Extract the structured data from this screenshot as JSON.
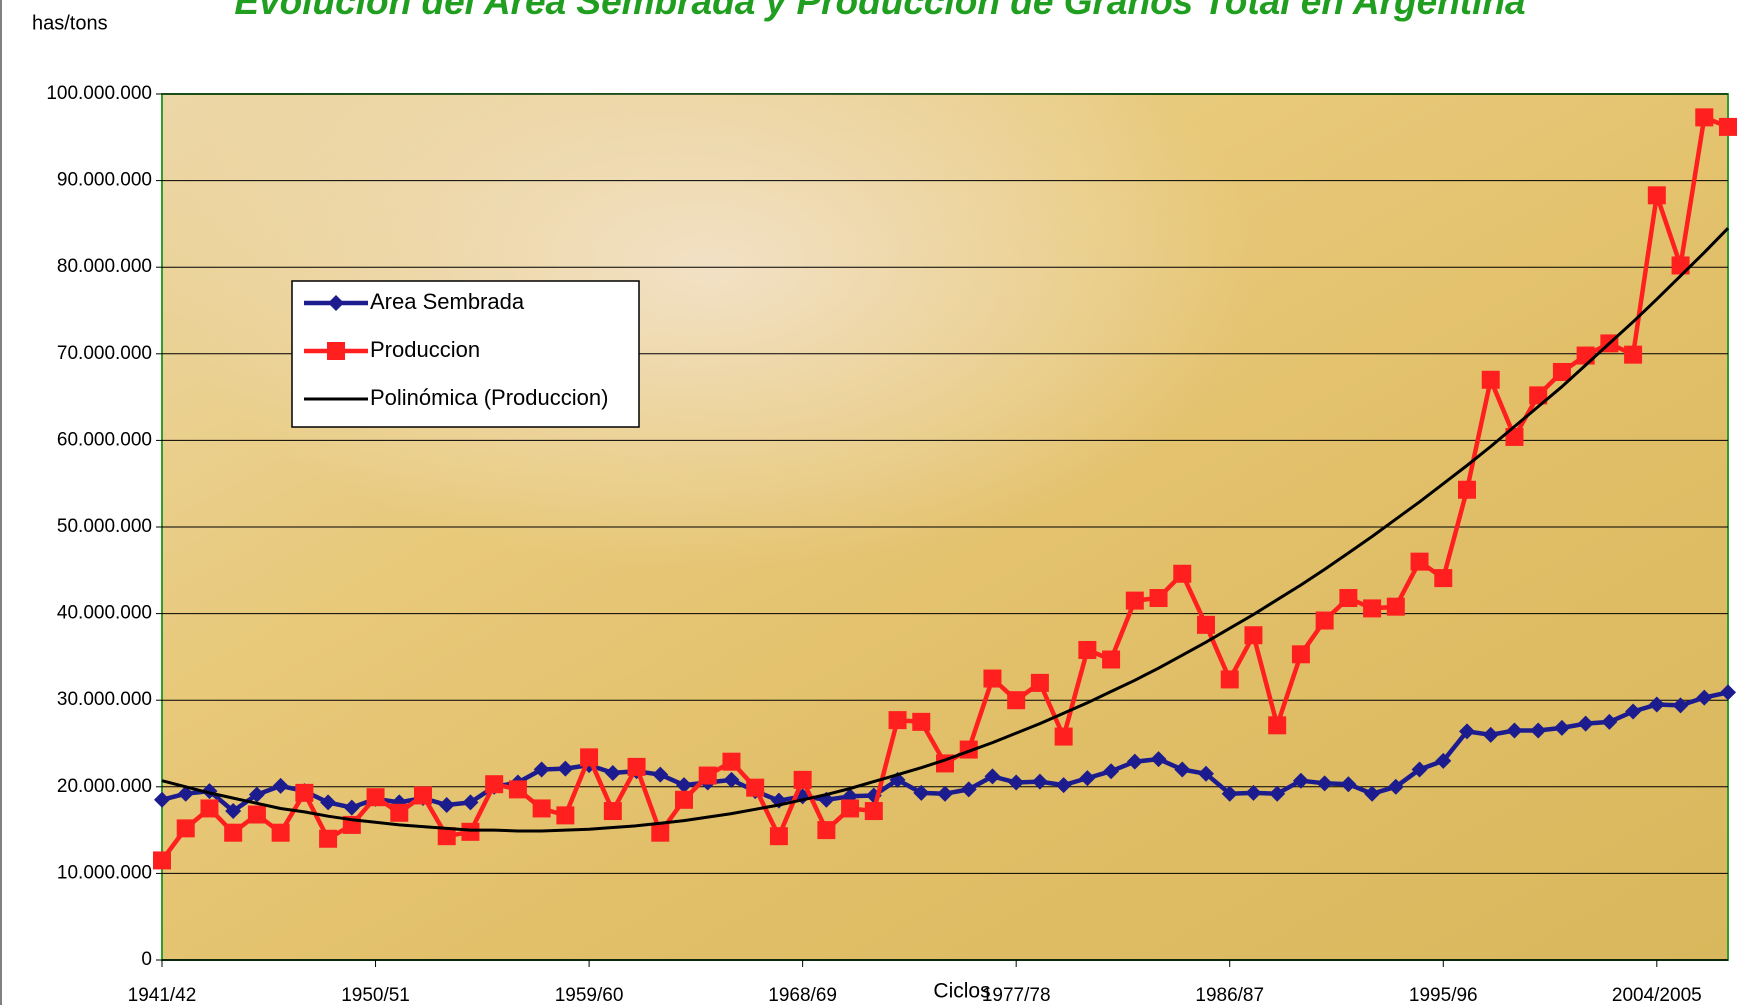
{
  "chart_data": {
    "type": "line",
    "title": "Evolucion del Area Sembrada y Produccion de Granos Total en Argentina",
    "y_label": "has/tons",
    "x_label": "Ciclos",
    "categories": [
      "1941/42",
      null,
      null,
      null,
      null,
      null,
      null,
      null,
      null,
      "1950/51",
      null,
      null,
      null,
      null,
      null,
      null,
      null,
      null,
      "1959/60",
      null,
      null,
      null,
      null,
      null,
      null,
      null,
      null,
      "1968/69",
      null,
      null,
      null,
      null,
      null,
      null,
      null,
      null,
      "1977/78",
      null,
      null,
      null,
      null,
      null,
      null,
      null,
      null,
      "1986/87",
      null,
      null,
      null,
      null,
      null,
      null,
      null,
      null,
      "1995/96",
      null,
      null,
      null,
      null,
      null,
      null,
      null,
      null,
      "2004/2005",
      null,
      null,
      null
    ],
    "ylim": [
      0,
      100000000
    ],
    "yticks": [
      {
        "value": 0,
        "label": "0"
      },
      {
        "value": 10000000,
        "label": "10.000.000"
      },
      {
        "value": 20000000,
        "label": "20.000.000"
      },
      {
        "value": 30000000,
        "label": "30.000.000"
      },
      {
        "value": 40000000,
        "label": "40.000.000"
      },
      {
        "value": 50000000,
        "label": "50.000.000"
      },
      {
        "value": 60000000,
        "label": "60.000.000"
      },
      {
        "value": 70000000,
        "label": "70.000.000"
      },
      {
        "value": 80000000,
        "label": "80.000.000"
      },
      {
        "value": 90000000,
        "label": "90.000.000"
      },
      {
        "value": 100000000,
        "label": "100.000.000"
      }
    ],
    "grid": true,
    "legend": "upper left",
    "series": [
      {
        "name": "Area Sembrada",
        "color": "#1c1c8e",
        "marker": "diamond",
        "values": [
          18500000,
          19200000,
          19500000,
          17200000,
          19100000,
          20100000,
          19500000,
          18200000,
          17600000,
          18600000,
          18200000,
          18700000,
          17900000,
          18200000,
          20000000,
          20500000,
          22000000,
          22100000,
          22500000,
          21600000,
          21800000,
          21400000,
          20200000,
          20500000,
          20800000,
          19500000,
          18400000,
          18900000,
          18500000,
          18900000,
          19000000,
          20800000,
          19300000,
          19200000,
          19700000,
          21200000,
          20500000,
          20600000,
          20200000,
          21000000,
          21800000,
          22900000,
          23200000,
          22000000,
          21500000,
          19200000,
          19300000,
          19200000,
          20700000,
          20400000,
          20300000,
          19200000,
          20000000,
          22000000,
          23000000,
          26400000,
          26000000,
          26500000,
          26500000,
          26800000,
          27300000,
          27500000,
          28700000,
          29500000,
          29400000,
          30300000,
          30900000
        ]
      },
      {
        "name": "Produccion",
        "color": "#ff1f1f",
        "marker": "square",
        "values": [
          11500000,
          15200000,
          17500000,
          14700000,
          16800000,
          14700000,
          19300000,
          14000000,
          15600000,
          18800000,
          17000000,
          19000000,
          14300000,
          14800000,
          20300000,
          19700000,
          17500000,
          16700000,
          23400000,
          17200000,
          22300000,
          14700000,
          18500000,
          21300000,
          22900000,
          19900000,
          14300000,
          20800000,
          15000000,
          17500000,
          17200000,
          27700000,
          27500000,
          22700000,
          24300000,
          32500000,
          30000000,
          32000000,
          25800000,
          35800000,
          34700000,
          41500000,
          41800000,
          44600000,
          38700000,
          32400000,
          37500000,
          27100000,
          35300000,
          39200000,
          41800000,
          40600000,
          40800000,
          46000000,
          44100000,
          54300000,
          67000000,
          60400000,
          65200000,
          67900000,
          69800000,
          71200000,
          69900000,
          88300000,
          80200000,
          97300000,
          96200000
        ]
      },
      {
        "name": "Polinómica (Produccion)",
        "color": "#000000",
        "marker": "none",
        "values": [
          20700000,
          20000000,
          19300000,
          18700000,
          18100000,
          17500000,
          17100000,
          16600000,
          16200000,
          15900000,
          15600000,
          15400000,
          15200000,
          15000000,
          15000000,
          14900000,
          14900000,
          15000000,
          15100000,
          15300000,
          15500000,
          15800000,
          16100000,
          16500000,
          16900000,
          17400000,
          17900000,
          18500000,
          19100000,
          19800000,
          20600000,
          21400000,
          22200000,
          23100000,
          24100000,
          25100000,
          26200000,
          27300000,
          28500000,
          29700000,
          31000000,
          32300000,
          33700000,
          35200000,
          36700000,
          38300000,
          39900000,
          41600000,
          43300000,
          45100000,
          47000000,
          48900000,
          50900000,
          52900000,
          55000000,
          57100000,
          59300000,
          61600000,
          63900000,
          66200000,
          68700000,
          71200000,
          73700000,
          76300000,
          79000000,
          81700000,
          84500000
        ]
      }
    ]
  }
}
